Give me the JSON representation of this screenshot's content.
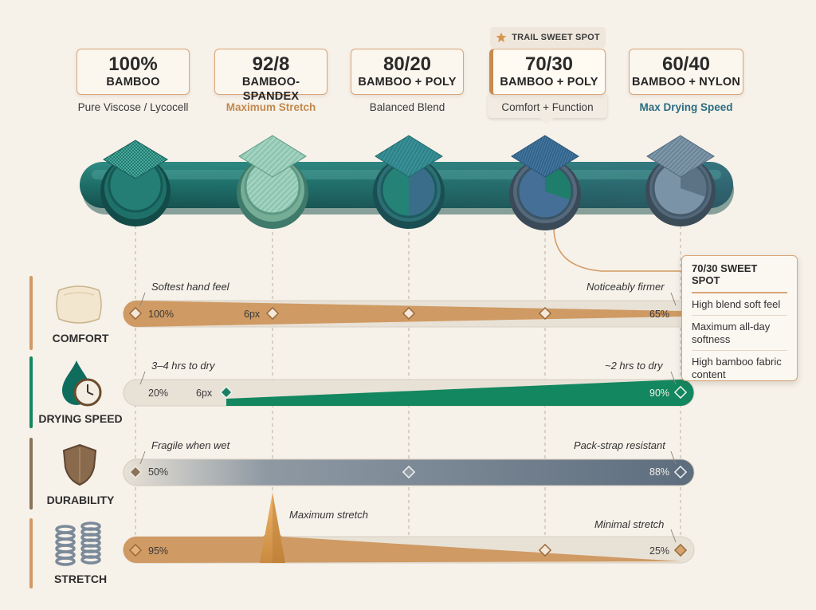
{
  "sweet_spot_tag": "TRAIL SWEET SPOT",
  "blends": [
    {
      "ratio": "100%",
      "name": "BAMBOO",
      "subtitle": "Pure Viscose / Lycocell"
    },
    {
      "ratio": "92/8",
      "name": "BAMBOO-SPANDEX",
      "subtitle": "Maximum Stretch"
    },
    {
      "ratio": "80/20",
      "name": "BAMBOO + POLY",
      "subtitle": "Balanced Blend"
    },
    {
      "ratio": "70/30",
      "name": "BAMBOO + POLY",
      "subtitle": "Comfort + Function"
    },
    {
      "ratio": "60/40",
      "name": "BAMBOO + NYLON",
      "subtitle": "Max Drying Speed"
    }
  ],
  "metrics": {
    "comfort": {
      "label": "COMFORT",
      "left_note": "Softest hand feel",
      "right_note": "Noticeably firmer",
      "start_value": "100%",
      "mid_value": "6px",
      "end_value": "65%"
    },
    "drying": {
      "label": "DRYING SPEED",
      "left_note": "3–4 hrs to dry",
      "right_note": "~2 hrs to dry",
      "start_value": "20%",
      "mid_value": "6px",
      "end_value": "90%"
    },
    "durability": {
      "label": "DURABILITY",
      "left_note": "Fragile when wet",
      "right_note": "Pack-strap resistant",
      "start_value": "50%",
      "end_value": "88%"
    },
    "stretch": {
      "label": "STRETCH",
      "peak_note": "Maximum stretch",
      "right_note": "Minimal stretch",
      "start_value": "95%",
      "end_value": "25%"
    }
  },
  "popup": {
    "title": "70/30 SWEET SPOT",
    "items": [
      "High blend soft feel",
      "Maximum all-day softness",
      "High bamboo fabric content"
    ]
  },
  "colors": {
    "teal": "#1f7a72",
    "tan": "#cf9a63",
    "green": "#13875f",
    "slate": "#5f6f80",
    "accent": "#d9a679"
  },
  "icons": [
    "star-icon",
    "pillow-icon",
    "water-drop-clock-icon",
    "shield-icon",
    "coil-spring-icon"
  ]
}
